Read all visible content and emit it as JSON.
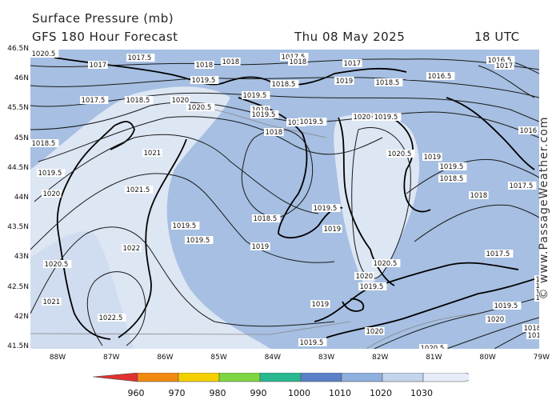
{
  "header": {
    "title": "Surface Pressure (mb)",
    "subtitle": "GFS 180 Hour Forecast",
    "date": "Thu 08 May 2025",
    "time": "18 UTC"
  },
  "watermark": "© www.PassageWeather.com",
  "map": {
    "lat_labels": [
      "46.5N",
      "46N",
      "45.5N",
      "45N",
      "44.5N",
      "44N",
      "43.5N",
      "43N",
      "42.5N",
      "42N",
      "41.5N"
    ],
    "lon_labels": [
      "88W",
      "87W",
      "86W",
      "85W",
      "84W",
      "83W",
      "82W",
      "81W",
      "80W",
      "79W"
    ],
    "colors": {
      "land_light": "#dde6f3",
      "land_mid": "#c8d6ec",
      "water": "#a6bfe2",
      "isobar": "#1a1a1a",
      "coast": "#000000",
      "border": "#888888"
    },
    "isobar_labels": [
      {
        "text": "1017"
      },
      {
        "text": "1017.5"
      },
      {
        "text": "1018"
      },
      {
        "text": "1018"
      },
      {
        "text": "1017.5"
      },
      {
        "text": "1018"
      },
      {
        "text": "1017"
      },
      {
        "text": "1016.5"
      },
      {
        "text": "1017"
      },
      {
        "text": "1019.5"
      },
      {
        "text": "1018.5"
      },
      {
        "text": "1019"
      },
      {
        "text": "1018.5"
      },
      {
        "text": "1016.5"
      },
      {
        "text": "1017.5"
      },
      {
        "text": "1018.5"
      },
      {
        "text": "1020"
      },
      {
        "text": "1020.5"
      },
      {
        "text": "1019.5"
      },
      {
        "text": "1019"
      },
      {
        "text": "1019.5"
      },
      {
        "text": "1018"
      },
      {
        "text": "1019"
      },
      {
        "text": "1016"
      },
      {
        "text": "1018.5"
      },
      {
        "text": "1019.5"
      },
      {
        "text": "1020"
      },
      {
        "text": "1019.5"
      },
      {
        "text": "1016"
      },
      {
        "text": "1021"
      },
      {
        "text": "1018"
      },
      {
        "text": "1020.5"
      },
      {
        "text": "1019"
      },
      {
        "text": "1019.5"
      },
      {
        "text": "1019.5"
      },
      {
        "text": "1018.5"
      },
      {
        "text": "1021.5"
      },
      {
        "text": "1020"
      },
      {
        "text": "1018"
      },
      {
        "text": "1017.5"
      },
      {
        "text": "1020.5"
      },
      {
        "text": "1019.5"
      },
      {
        "text": "1018.5"
      },
      {
        "text": "1019.5"
      },
      {
        "text": "1019.5"
      },
      {
        "text": "1019"
      },
      {
        "text": "1019"
      },
      {
        "text": "1022"
      },
      {
        "text": "1017.5"
      },
      {
        "text": "1020.5"
      },
      {
        "text": "1020.5"
      },
      {
        "text": "1020"
      },
      {
        "text": "1019.5"
      },
      {
        "text": "1018"
      },
      {
        "text": "1018.5"
      },
      {
        "text": "1021"
      },
      {
        "text": "1019"
      },
      {
        "text": "1019.5"
      },
      {
        "text": "1022.5"
      },
      {
        "text": "1019"
      },
      {
        "text": "1019.5"
      },
      {
        "text": "1020"
      },
      {
        "text": "1020"
      },
      {
        "text": "1020.5"
      },
      {
        "text": "1018"
      },
      {
        "text": "1019.5"
      },
      {
        "text": "1021.5"
      },
      {
        "text": "1022"
      },
      {
        "text": "1019"
      },
      {
        "text": "1018"
      }
    ]
  },
  "legend": {
    "ticks": [
      "960",
      "970",
      "980",
      "990",
      "1000",
      "1010",
      "1020",
      "1030"
    ],
    "colors": [
      "#e03030",
      "#f08a10",
      "#f5d000",
      "#7fd640",
      "#28b890",
      "#5a80c8",
      "#8fb0dc",
      "#c4d4ec",
      "#e6edf8"
    ]
  }
}
